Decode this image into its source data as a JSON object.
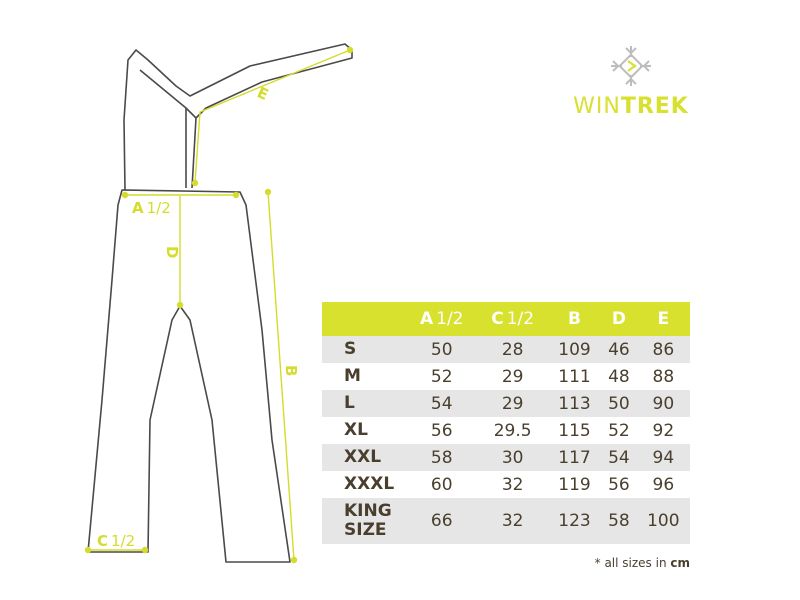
{
  "colors": {
    "accent": "#d7e12e",
    "text": "#4a3f2e",
    "row_alt": "#e6e6e6",
    "outline": "#4a4a4a"
  },
  "logo": {
    "icon": "snowflake-icon",
    "brand_light": "WIN",
    "brand_bold": "TREK"
  },
  "diagram": {
    "labels": {
      "a": {
        "letter": "A",
        "suffix": "1/2"
      },
      "b": {
        "letter": "B"
      },
      "c": {
        "letter": "C",
        "suffix": "1/2"
      },
      "d": {
        "letter": "D"
      },
      "e": {
        "letter": "E"
      }
    }
  },
  "table": {
    "headers": [
      {
        "letter": "",
        "suffix": ""
      },
      {
        "letter": "A",
        "suffix": "1/2"
      },
      {
        "letter": "C",
        "suffix": "1/2"
      },
      {
        "letter": "B",
        "suffix": ""
      },
      {
        "letter": "D",
        "suffix": ""
      },
      {
        "letter": "E",
        "suffix": ""
      }
    ],
    "rows": [
      {
        "size": "S",
        "values": [
          "50",
          "28",
          "109",
          "46",
          "86"
        ]
      },
      {
        "size": "M",
        "values": [
          "52",
          "29",
          "111",
          "48",
          "88"
        ]
      },
      {
        "size": "L",
        "values": [
          "54",
          "29",
          "113",
          "50",
          "90"
        ]
      },
      {
        "size": "XL",
        "values": [
          "56",
          "29.5",
          "115",
          "52",
          "92"
        ]
      },
      {
        "size": "XXL",
        "values": [
          "58",
          "30",
          "117",
          "54",
          "94"
        ]
      },
      {
        "size": "XXXL",
        "values": [
          "60",
          "32",
          "119",
          "56",
          "96"
        ]
      },
      {
        "size": "KING SIZE",
        "size_line1": "KING",
        "size_line2": "SIZE",
        "values": [
          "66",
          "32",
          "123",
          "58",
          "100"
        ]
      }
    ]
  },
  "footnote": {
    "text": "* all sizes in ",
    "unit": "cm"
  }
}
